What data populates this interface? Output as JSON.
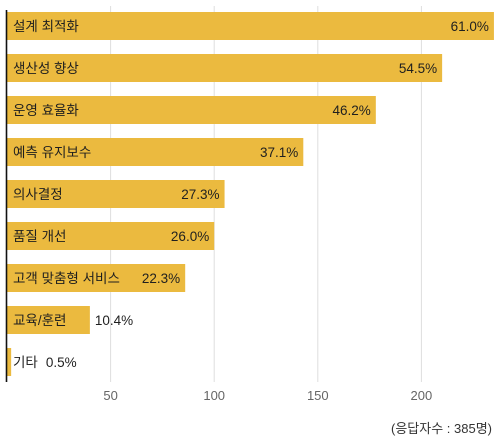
{
  "chart_data": {
    "type": "bar",
    "orientation": "horizontal",
    "categories": [
      "설계 최적화",
      "생산성 향상",
      "운영 효율화",
      "예측 유지보수",
      "의사결정",
      "품질 개선",
      "고객 맞춤형 서비스",
      "교육/훈련",
      "기타"
    ],
    "values": [
      235,
      210,
      178,
      143,
      105,
      100,
      86,
      40,
      2
    ],
    "data_labels": [
      "61.0%",
      "54.5%",
      "46.2%",
      "37.1%",
      "27.3%",
      "26.0%",
      "22.3%",
      "10.4%",
      "0.5%"
    ],
    "xlim": [
      0,
      236
    ],
    "x_ticks": [
      50,
      100,
      150,
      200
    ],
    "grid": true,
    "legend": "none",
    "bar_color": "#ebba3f",
    "annotation": "(응답자수 : 385명)"
  }
}
